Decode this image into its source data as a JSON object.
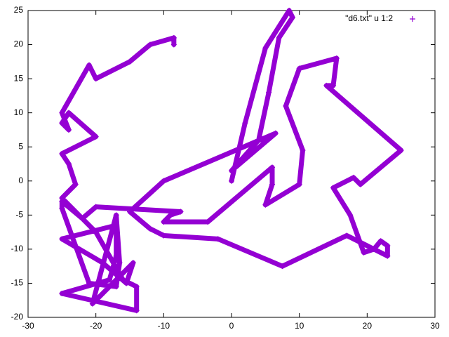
{
  "chart_data": {
    "type": "scatter",
    "series": [
      {
        "name": "\"d6.txt\" u 1:2",
        "color": "#9400d3",
        "x": [
          0,
          2,
          5,
          8.5,
          9,
          7,
          5.5,
          4,
          0,
          6.5,
          -10,
          -15,
          -12,
          -10,
          -2,
          7.5,
          17,
          23,
          23,
          22,
          21,
          19.5,
          17.5,
          15,
          18,
          19,
          25,
          14,
          15,
          15.5,
          10,
          8,
          10.5,
          10,
          5,
          6,
          6,
          -3.5,
          -10,
          -9,
          -7.5,
          -20,
          -22,
          -25,
          -25,
          -21,
          -17,
          -16.5,
          -17,
          -20.5,
          -14.5,
          -15.5,
          -19,
          -25,
          -17,
          -17,
          -18,
          -25,
          -14,
          -14,
          -16,
          -20,
          -25,
          -23,
          -24,
          -25,
          -20,
          -24,
          -25,
          -24,
          -25,
          -21,
          -20,
          -15,
          -12,
          -8.5,
          -8.5
        ],
        "y": [
          0,
          8.5,
          19.5,
          25,
          24,
          21,
          13,
          6,
          1.5,
          7,
          0,
          -4.5,
          -7,
          -8,
          -8.5,
          -12.5,
          -8,
          -11,
          -9.5,
          -8.8,
          -10,
          -10.5,
          -5,
          -1,
          0.5,
          -0.5,
          4.5,
          14,
          14,
          18,
          16.5,
          11,
          4.5,
          -0.5,
          -3.5,
          -0.5,
          2,
          -6,
          -6,
          -5,
          -4.5,
          -3.8,
          -5.5,
          -3,
          -4,
          -15,
          -15.5,
          -12,
          -5,
          -18,
          -12,
          -15,
          -12,
          -8.5,
          -6.5,
          -11,
          -14.5,
          -16.5,
          -19,
          -15.5,
          -14.5,
          -7.5,
          -2.5,
          -0.5,
          2.5,
          4,
          6.5,
          10,
          8.5,
          7.5,
          10,
          17,
          15,
          17.5,
          20,
          21,
          20
        ]
      }
    ],
    "xlim": [
      -30,
      30
    ],
    "ylim": [
      -20,
      25
    ],
    "xticks": [
      -30,
      -20,
      -10,
      0,
      10,
      20,
      30
    ],
    "yticks": [
      -20,
      -15,
      -10,
      -5,
      0,
      5,
      10,
      15,
      20,
      25
    ],
    "legend": "top-right"
  }
}
